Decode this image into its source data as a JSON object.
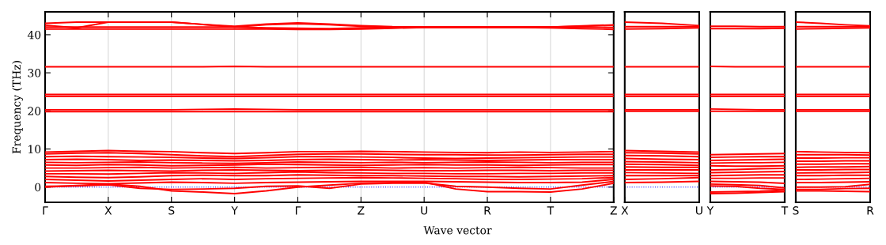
{
  "chart_data": [
    {
      "type": "line",
      "ylabel": "Frequency (THz)",
      "xlabel": "Wave vector",
      "ylim": [
        -4,
        46
      ],
      "yticks": [
        0,
        10,
        20,
        30,
        40
      ],
      "categories": [
        "Γ",
        null,
        "X",
        null,
        "S",
        null,
        "Y",
        null,
        "Γ",
        null,
        "Z",
        null,
        "U",
        null,
        "R",
        null,
        "T",
        null,
        "Z"
      ],
      "grid": "x",
      "marker": "none",
      "line_style": "solid",
      "ref_lines": [
        {
          "axis": "y",
          "value": 0,
          "label": null,
          "color": "#0000ff",
          "line_style": "dotted"
        }
      ],
      "series": [
        {
          "color": "#ff0000",
          "values": [
            0,
            0.4,
            0.8,
            0.2,
            -1.0,
            -1.3,
            -1.7,
            -1.0,
            0,
            0.5,
            1.0,
            1.2,
            1.3,
            -0.5,
            -1.2,
            -1.2,
            -1.3,
            -0.5,
            1.0
          ]
        },
        {
          "color": "#ff0000",
          "values": [
            0.2,
            0.3,
            0.6,
            -0.3,
            -0.6,
            -0.5,
            -0.3,
            0.2,
            0.3,
            -0.3,
            0.8,
            1.0,
            1.1,
            0.2,
            0.0,
            -0.3,
            -0.5,
            0.5,
            1.5
          ]
        },
        {
          "color": "#ff0000",
          "values": [
            1.2,
            1.0,
            0.9,
            1.1,
            1.3,
            1.2,
            1.0,
            1.2,
            1.3,
            1.4,
            1.5,
            1.5,
            1.5,
            1.4,
            1.3,
            1.2,
            1.2,
            1.3,
            2.0
          ]
        },
        {
          "color": "#ff0000",
          "values": [
            2.0,
            1.8,
            1.6,
            1.8,
            2.0,
            2.2,
            2.0,
            2.2,
            2.3,
            2.4,
            2.5,
            2.4,
            2.3,
            2.2,
            2.0,
            2.0,
            2.1,
            2.2,
            2.5
          ]
        },
        {
          "color": "#ff0000",
          "values": [
            2.8,
            2.6,
            2.5,
            2.7,
            3.0,
            3.1,
            3.0,
            3.0,
            3.2,
            3.1,
            3.0,
            3.0,
            2.9,
            2.8,
            2.8,
            2.7,
            2.8,
            2.9,
            3.0
          ]
        },
        {
          "color": "#ff0000",
          "values": [
            3.5,
            3.5,
            3.4,
            3.6,
            3.8,
            3.7,
            3.6,
            3.8,
            4.0,
            3.8,
            3.7,
            3.6,
            3.6,
            3.5,
            3.5,
            3.6,
            3.6,
            3.7,
            3.7
          ]
        },
        {
          "color": "#ff0000",
          "values": [
            4.2,
            4.3,
            4.4,
            4.3,
            4.2,
            4.4,
            4.5,
            4.4,
            4.3,
            4.4,
            4.5,
            4.4,
            4.3,
            4.3,
            4.4,
            4.4,
            4.3,
            4.4,
            4.4
          ]
        },
        {
          "color": "#ff0000",
          "values": [
            5.0,
            5.0,
            5.1,
            5.2,
            5.0,
            5.1,
            5.2,
            5.0,
            5.1,
            5.2,
            5.2,
            5.0,
            5.1,
            5.0,
            5.1,
            5.2,
            5.1,
            5.0,
            5.0
          ]
        },
        {
          "color": "#ff0000",
          "values": [
            5.8,
            5.7,
            5.9,
            5.8,
            5.6,
            5.7,
            5.8,
            6.0,
            5.9,
            5.8,
            5.7,
            5.8,
            5.9,
            5.8,
            5.8,
            5.7,
            5.8,
            5.9,
            5.9
          ]
        },
        {
          "color": "#ff0000",
          "values": [
            6.5,
            6.4,
            6.5,
            6.6,
            6.4,
            6.3,
            6.2,
            6.4,
            6.6,
            6.5,
            6.4,
            6.5,
            6.4,
            6.5,
            6.6,
            6.5,
            6.4,
            6.5,
            6.5
          ]
        },
        {
          "color": "#ff0000",
          "values": [
            7.2,
            7.3,
            7.2,
            7.0,
            7.1,
            7.0,
            6.9,
            7.0,
            7.2,
            7.3,
            7.2,
            7.1,
            7.2,
            7.1,
            7.0,
            7.1,
            7.2,
            7.2,
            7.2
          ]
        },
        {
          "color": "#ff0000",
          "values": [
            8.0,
            8.1,
            8.0,
            7.9,
            7.8,
            7.6,
            7.5,
            7.7,
            8.0,
            8.0,
            7.9,
            7.8,
            7.6,
            7.5,
            7.6,
            7.7,
            7.8,
            7.9,
            7.9
          ]
        },
        {
          "color": "#ff0000",
          "values": [
            8.7,
            8.9,
            9.0,
            8.8,
            8.5,
            8.2,
            8.0,
            8.3,
            8.6,
            8.7,
            8.7,
            8.6,
            8.5,
            8.5,
            8.4,
            8.4,
            8.5,
            8.6,
            8.6
          ]
        },
        {
          "color": "#ff0000",
          "values": [
            9.2,
            9.4,
            9.6,
            9.4,
            9.3,
            9.0,
            8.8,
            9.0,
            9.3,
            9.3,
            9.4,
            9.3,
            9.2,
            9.1,
            9.0,
            9.2,
            9.1,
            9.2,
            9.3
          ]
        },
        {
          "color": "#ff0000",
          "values": [
            19.8,
            19.8,
            19.8,
            19.8,
            19.8,
            19.8,
            19.8,
            19.8,
            19.8,
            19.8,
            19.8,
            19.8,
            19.8,
            19.8,
            19.8,
            19.8,
            19.8,
            19.8,
            19.8
          ]
        },
        {
          "color": "#ff0000",
          "values": [
            20.3,
            20.3,
            20.3,
            20.3,
            20.3,
            20.4,
            20.5,
            20.4,
            20.3,
            20.3,
            20.3,
            20.3,
            20.3,
            20.3,
            20.3,
            20.3,
            20.3,
            20.3,
            20.3
          ]
        },
        {
          "color": "#ff0000",
          "values": [
            23.8,
            23.8,
            23.8,
            23.8,
            23.8,
            23.8,
            23.8,
            23.8,
            23.8,
            23.8,
            23.8,
            23.8,
            23.8,
            23.8,
            23.8,
            23.8,
            23.8,
            23.8,
            23.8
          ]
        },
        {
          "color": "#ff0000",
          "values": [
            24.3,
            24.3,
            24.3,
            24.3,
            24.3,
            24.3,
            24.3,
            24.3,
            24.3,
            24.3,
            24.3,
            24.3,
            24.3,
            24.3,
            24.3,
            24.3,
            24.3,
            24.3,
            24.3
          ]
        },
        {
          "color": "#ff0000",
          "values": [
            31.6,
            31.6,
            31.6,
            31.6,
            31.6,
            31.6,
            31.7,
            31.6,
            31.6,
            31.6,
            31.6,
            31.6,
            31.6,
            31.6,
            31.6,
            31.6,
            31.6,
            31.6,
            31.6
          ]
        },
        {
          "color": "#ff0000",
          "values": [
            41.5,
            41.5,
            41.5,
            41.5,
            41.5,
            41.5,
            41.5,
            41.5,
            41.4,
            41.4,
            41.5,
            41.7,
            41.9,
            41.9,
            41.9,
            41.9,
            41.8,
            41.6,
            41.4
          ]
        },
        {
          "color": "#ff0000",
          "values": [
            42.0,
            42.0,
            42.0,
            42.0,
            42.0,
            42.0,
            42.0,
            41.8,
            41.7,
            41.6,
            41.8,
            41.9,
            42.0,
            42.0,
            42.0,
            42.0,
            42.0,
            42.0,
            41.9
          ]
        },
        {
          "color": "#ff0000",
          "values": [
            42.5,
            41.8,
            43.3,
            43.3,
            43.3,
            42.7,
            42.0,
            42.6,
            42.9,
            42.6,
            42.2,
            42.0,
            42.0,
            42.0,
            42.0,
            42.0,
            42.0,
            42.2,
            42.5
          ]
        },
        {
          "color": "#ff0000",
          "values": [
            43.0,
            43.3,
            43.3,
            43.3,
            43.3,
            42.7,
            42.2,
            42.8,
            43.1,
            42.8,
            42.4,
            42.1,
            42.0,
            42.0,
            42.0,
            42.0,
            42.0,
            42.3,
            42.6
          ]
        }
      ]
    },
    {
      "type": "line",
      "ylim": [
        -4,
        46
      ],
      "tick_labels": "x",
      "marker": "none",
      "line_style": "solid",
      "categories": [
        "X",
        null,
        "U"
      ],
      "ref_lines": [
        {
          "axis": "y",
          "value": 0,
          "label": null,
          "color": "#0000ff",
          "line_style": "dotted"
        }
      ],
      "series": [
        {
          "color": "#ff0000",
          "values": [
            1.2,
            1.3,
            1.5
          ]
        },
        {
          "color": "#ff0000",
          "values": [
            2.0,
            2.2,
            2.5
          ]
        },
        {
          "color": "#ff0000",
          "values": [
            3.0,
            3.0,
            3.0
          ]
        },
        {
          "color": "#ff0000",
          "values": [
            3.8,
            3.7,
            3.6
          ]
        },
        {
          "color": "#ff0000",
          "values": [
            4.5,
            4.5,
            4.5
          ]
        },
        {
          "color": "#ff0000",
          "values": [
            5.3,
            5.2,
            5.2
          ]
        },
        {
          "color": "#ff0000",
          "values": [
            6.0,
            5.9,
            5.7
          ]
        },
        {
          "color": "#ff0000",
          "values": [
            6.7,
            6.6,
            6.4
          ]
        },
        {
          "color": "#ff0000",
          "values": [
            7.5,
            7.3,
            7.2
          ]
        },
        {
          "color": "#ff0000",
          "values": [
            8.3,
            8.2,
            8.0
          ]
        },
        {
          "color": "#ff0000",
          "values": [
            9.0,
            8.9,
            8.7
          ]
        },
        {
          "color": "#ff0000",
          "values": [
            9.6,
            9.4,
            9.2
          ]
        },
        {
          "color": "#ff0000",
          "values": [
            19.9,
            19.9,
            19.9
          ]
        },
        {
          "color": "#ff0000",
          "values": [
            20.3,
            20.3,
            20.3
          ]
        },
        {
          "color": "#ff0000",
          "values": [
            23.8,
            23.8,
            23.8
          ]
        },
        {
          "color": "#ff0000",
          "values": [
            24.3,
            24.3,
            24.3
          ]
        },
        {
          "color": "#ff0000",
          "values": [
            31.6,
            31.6,
            31.6
          ]
        },
        {
          "color": "#ff0000",
          "values": [
            41.5,
            41.6,
            41.8
          ]
        },
        {
          "color": "#ff0000",
          "values": [
            42.1,
            42.1,
            42.1
          ]
        },
        {
          "color": "#ff0000",
          "values": [
            43.3,
            43.0,
            42.4
          ]
        }
      ]
    },
    {
      "type": "line",
      "ylim": [
        -4,
        46
      ],
      "tick_labels": "x",
      "marker": "none",
      "line_style": "solid",
      "categories": [
        "Y",
        null,
        null,
        "T"
      ],
      "ref_lines": [
        {
          "axis": "y",
          "value": 0,
          "label": null,
          "color": "#0000ff",
          "line_style": "dotted"
        }
      ],
      "series": [
        {
          "color": "#ff0000",
          "values": [
            -1.7,
            -1.6,
            -1.4,
            -1.2
          ]
        },
        {
          "color": "#ff0000",
          "values": [
            -1.3,
            -1.2,
            -1.1,
            -0.8
          ]
        },
        {
          "color": "#ff0000",
          "values": [
            0.3,
            0.2,
            -0.3,
            -0.6
          ]
        },
        {
          "color": "#ff0000",
          "values": [
            0.8,
            0.6,
            0.4,
            -0.2
          ]
        },
        {
          "color": "#ff0000",
          "values": [
            1.5,
            1.4,
            1.3,
            1.0
          ]
        },
        {
          "color": "#ff0000",
          "values": [
            2.3,
            2.3,
            2.4,
            2.4
          ]
        },
        {
          "color": "#ff0000",
          "values": [
            3.0,
            3.1,
            3.2,
            3.2
          ]
        },
        {
          "color": "#ff0000",
          "values": [
            3.8,
            3.9,
            4.0,
            4.1
          ]
        },
        {
          "color": "#ff0000",
          "values": [
            4.5,
            4.6,
            4.8,
            4.9
          ]
        },
        {
          "color": "#ff0000",
          "values": [
            5.6,
            5.5,
            5.5,
            5.6
          ]
        },
        {
          "color": "#ff0000",
          "values": [
            6.3,
            6.4,
            6.4,
            6.5
          ]
        },
        {
          "color": "#ff0000",
          "values": [
            7.0,
            7.1,
            7.2,
            7.3
          ]
        },
        {
          "color": "#ff0000",
          "values": [
            7.8,
            7.9,
            8.0,
            8.0
          ]
        },
        {
          "color": "#ff0000",
          "values": [
            8.5,
            8.6,
            8.7,
            8.8
          ]
        },
        {
          "color": "#ff0000",
          "values": [
            19.9,
            19.9,
            19.9,
            19.9
          ]
        },
        {
          "color": "#ff0000",
          "values": [
            20.5,
            20.4,
            20.3,
            20.3
          ]
        },
        {
          "color": "#ff0000",
          "values": [
            23.8,
            23.8,
            23.8,
            23.8
          ]
        },
        {
          "color": "#ff0000",
          "values": [
            24.3,
            24.3,
            24.3,
            24.3
          ]
        },
        {
          "color": "#ff0000",
          "values": [
            31.7,
            31.6,
            31.6,
            31.6
          ]
        },
        {
          "color": "#ff0000",
          "values": [
            41.6,
            41.6,
            41.6,
            41.7
          ]
        },
        {
          "color": "#ff0000",
          "values": [
            42.2,
            42.2,
            42.1,
            42.1
          ]
        }
      ]
    },
    {
      "type": "line",
      "ylim": [
        -4,
        46
      ],
      "tick_labels": "x",
      "marker": "none",
      "line_style": "solid",
      "categories": [
        "S",
        null,
        null,
        "R"
      ],
      "ref_lines": [
        {
          "axis": "y",
          "value": 0,
          "label": null,
          "color": "#0000ff",
          "line_style": "dotted"
        }
      ],
      "series": [
        {
          "color": "#ff0000",
          "values": [
            -1.0,
            -1.0,
            -1.1,
            -1.2
          ]
        },
        {
          "color": "#ff0000",
          "values": [
            -0.6,
            -0.6,
            -0.4,
            -0.3
          ]
        },
        {
          "color": "#ff0000",
          "values": [
            0.0,
            0.0,
            0.1,
            0.7
          ]
        },
        {
          "color": "#ff0000",
          "values": [
            1.2,
            1.2,
            1.3,
            1.4
          ]
        },
        {
          "color": "#ff0000",
          "values": [
            2.0,
            2.1,
            2.2,
            2.3
          ]
        },
        {
          "color": "#ff0000",
          "values": [
            3.0,
            3.0,
            3.1,
            3.1
          ]
        },
        {
          "color": "#ff0000",
          "values": [
            3.7,
            3.8,
            3.8,
            3.9
          ]
        },
        {
          "color": "#ff0000",
          "values": [
            4.5,
            4.5,
            4.6,
            4.6
          ]
        },
        {
          "color": "#ff0000",
          "values": [
            5.2,
            5.3,
            5.3,
            5.4
          ]
        },
        {
          "color": "#ff0000",
          "values": [
            6.0,
            6.0,
            6.1,
            6.1
          ]
        },
        {
          "color": "#ff0000",
          "values": [
            6.8,
            6.8,
            6.9,
            6.9
          ]
        },
        {
          "color": "#ff0000",
          "values": [
            7.6,
            7.6,
            7.7,
            7.7
          ]
        },
        {
          "color": "#ff0000",
          "values": [
            8.5,
            8.5,
            8.5,
            8.4
          ]
        },
        {
          "color": "#ff0000",
          "values": [
            9.3,
            9.2,
            9.1,
            9.0
          ]
        },
        {
          "color": "#ff0000",
          "values": [
            19.9,
            19.9,
            19.9,
            19.9
          ]
        },
        {
          "color": "#ff0000",
          "values": [
            20.3,
            20.3,
            20.3,
            20.3
          ]
        },
        {
          "color": "#ff0000",
          "values": [
            23.8,
            23.8,
            23.8,
            23.8
          ]
        },
        {
          "color": "#ff0000",
          "values": [
            24.3,
            24.3,
            24.3,
            24.3
          ]
        },
        {
          "color": "#ff0000",
          "values": [
            31.6,
            31.6,
            31.6,
            31.6
          ]
        },
        {
          "color": "#ff0000",
          "values": [
            41.5,
            41.6,
            41.7,
            41.8
          ]
        },
        {
          "color": "#ff0000",
          "values": [
            42.1,
            42.1,
            42.1,
            42.1
          ]
        },
        {
          "color": "#ff0000",
          "values": [
            43.3,
            43.0,
            42.6,
            42.3
          ]
        }
      ]
    }
  ]
}
